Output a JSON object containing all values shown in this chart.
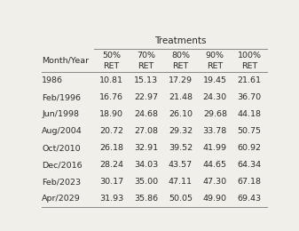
{
  "title": "Treatments",
  "col_headers": [
    "50%\nRET",
    "70%\nRET",
    "80%\nRET",
    "90%\nRET",
    "100%\nRET"
  ],
  "row_label_header": "Month/Year",
  "row_labels": [
    "1986",
    "Feb/1996",
    "Jun/1998",
    "Aug/2004",
    "Oct/2010",
    "Dec/2016",
    "Feb/2023",
    "Apr/2029"
  ],
  "table_data": [
    [
      "10.81",
      "15.13",
      "17.29",
      "19.45",
      "21.61"
    ],
    [
      "16.76",
      "22.97",
      "21.48",
      "24.30",
      "36.70"
    ],
    [
      "18.90",
      "24.68",
      "26.10",
      "29.68",
      "44.18"
    ],
    [
      "20.72",
      "27.08",
      "29.32",
      "33.78",
      "50.75"
    ],
    [
      "26.18",
      "32.91",
      "39.52",
      "41.99",
      "60.92"
    ],
    [
      "28.24",
      "34.03",
      "43.57",
      "44.65",
      "64.34"
    ],
    [
      "30.17",
      "35.00",
      "47.11",
      "47.30",
      "67.18"
    ],
    [
      "31.93",
      "35.86",
      "50.05",
      "49.90",
      "69.43"
    ]
  ],
  "bg_color": "#f0efea",
  "text_color": "#2a2a2a",
  "line_color": "#888888",
  "font_size": 6.8,
  "title_font_size": 7.5
}
